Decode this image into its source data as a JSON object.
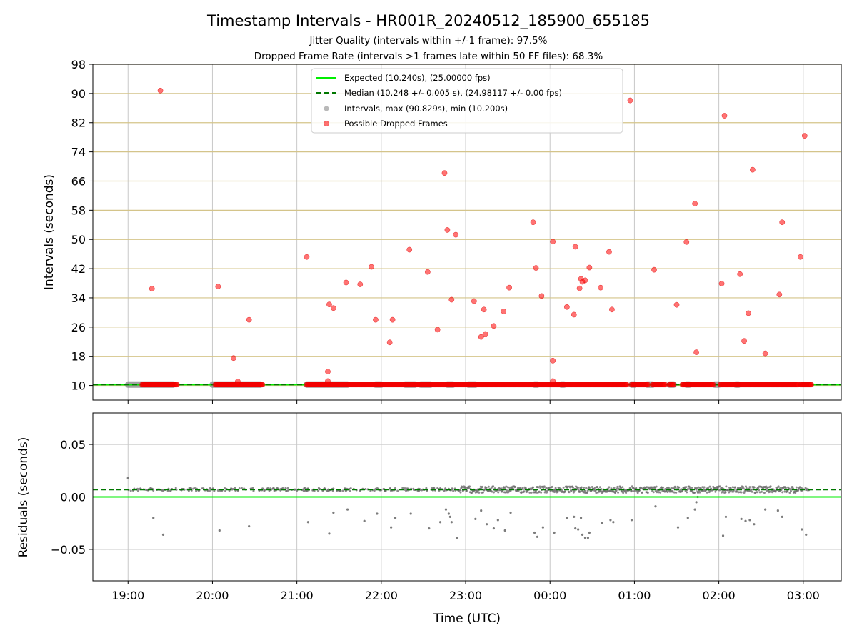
{
  "chart_data": [
    {
      "type": "scatter",
      "panel": "intervals",
      "title": "Timestamp Intervals - HR001R_20240512_185900_655185",
      "subtitle_1": "Jitter Quality (intervals within +/-1 frame): 97.5%",
      "subtitle_2": "Dropped Frame Rate (intervals >1 frames late within 50 FF files): 68.3%",
      "ylabel": "Intervals (seconds)",
      "ylim": [
        6,
        98
      ],
      "yticks": [
        "10",
        "18",
        "26",
        "34",
        "42",
        "50",
        "58",
        "66",
        "74",
        "82",
        "90",
        "98"
      ],
      "grid": "horizontal golden lines at y ticks, vertical grey lines at x ticks",
      "legend_position": "top-center",
      "legend": {
        "expected": "Expected (10.240s), (25.00000 fps)",
        "median": "Median (10.248 +/- 0.005 s), (24.98117 +/- 0.00 fps)",
        "intervals": "Intervals, max (90.829s), min (10.200s)",
        "dropped": "Possible Dropped Frames"
      },
      "expected_line": 10.24,
      "median_line": 10.248,
      "interval_band_segments": [
        [
          "19:00",
          "19:32"
        ],
        [
          "20:00",
          "20:34"
        ],
        [
          "21:07",
          "21:36"
        ],
        [
          "21:56",
          "22:00"
        ],
        [
          "22:17",
          "22:24"
        ],
        [
          "22:28",
          "22:35"
        ],
        [
          "22:47",
          "22:51"
        ],
        [
          "23:02",
          "23:07"
        ],
        [
          "23:49",
          "23:51"
        ],
        [
          "00:08",
          "00:10"
        ],
        [
          "00:58",
          "01:00"
        ],
        [
          "01:09",
          "01:13"
        ],
        [
          "01:25",
          "01:28"
        ],
        [
          "01:37",
          "01:39"
        ],
        [
          "01:57",
          "02:00"
        ],
        [
          "02:12",
          "02:14"
        ]
      ],
      "dropped_frame_runs": [
        [
          "19:10",
          "19:35"
        ],
        [
          "20:02",
          "20:36"
        ],
        [
          "21:07",
          "23:03"
        ],
        [
          "23:03",
          "23:53"
        ],
        [
          "23:53",
          "00:55"
        ],
        [
          "00:58",
          "01:10"
        ],
        [
          "01:13",
          "01:22"
        ],
        [
          "01:25",
          "01:28"
        ],
        [
          "01:34",
          "01:56"
        ],
        [
          "02:01",
          "02:57"
        ],
        [
          "02:58",
          "03:06"
        ]
      ],
      "dropped_frame_points": [
        {
          "t": "19:23",
          "y": 90.8
        },
        {
          "t": "19:17",
          "y": 36.5
        },
        {
          "t": "20:04",
          "y": 37.1
        },
        {
          "t": "20:15",
          "y": 17.5
        },
        {
          "t": "20:18",
          "y": 11.1
        },
        {
          "t": "20:26",
          "y": 28.0
        },
        {
          "t": "21:07",
          "y": 45.2
        },
        {
          "t": "21:22",
          "y": 13.8
        },
        {
          "t": "21:22",
          "y": 11.2
        },
        {
          "t": "21:23",
          "y": 32.2
        },
        {
          "t": "21:26",
          "y": 31.2
        },
        {
          "t": "21:35",
          "y": 38.2
        },
        {
          "t": "21:45",
          "y": 37.7
        },
        {
          "t": "21:53",
          "y": 42.5
        },
        {
          "t": "21:56",
          "y": 28.0
        },
        {
          "t": "22:06",
          "y": 21.8
        },
        {
          "t": "22:08",
          "y": 28.0
        },
        {
          "t": "22:20",
          "y": 47.2
        },
        {
          "t": "22:33",
          "y": 41.1
        },
        {
          "t": "22:40",
          "y": 25.3
        },
        {
          "t": "22:45",
          "y": 68.2
        },
        {
          "t": "22:47",
          "y": 52.6
        },
        {
          "t": "22:50",
          "y": 33.5
        },
        {
          "t": "22:53",
          "y": 51.3
        },
        {
          "t": "23:06",
          "y": 33.1
        },
        {
          "t": "23:11",
          "y": 23.3
        },
        {
          "t": "23:13",
          "y": 30.8
        },
        {
          "t": "23:14",
          "y": 24.1
        },
        {
          "t": "23:20",
          "y": 26.3
        },
        {
          "t": "23:27",
          "y": 30.3
        },
        {
          "t": "23:31",
          "y": 36.8
        },
        {
          "t": "23:48",
          "y": 54.7
        },
        {
          "t": "23:50",
          "y": 42.2
        },
        {
          "t": "23:54",
          "y": 34.5
        },
        {
          "t": "00:02",
          "y": 49.4
        },
        {
          "t": "00:02",
          "y": 16.8
        },
        {
          "t": "00:02",
          "y": 11.2
        },
        {
          "t": "00:12",
          "y": 31.5
        },
        {
          "t": "00:17",
          "y": 29.4
        },
        {
          "t": "00:18",
          "y": 48.0
        },
        {
          "t": "00:21",
          "y": 36.6
        },
        {
          "t": "00:22",
          "y": 39.2
        },
        {
          "t": "00:23",
          "y": 38.4
        },
        {
          "t": "00:25",
          "y": 38.8
        },
        {
          "t": "00:28",
          "y": 42.3
        },
        {
          "t": "00:36",
          "y": 36.8
        },
        {
          "t": "00:42",
          "y": 46.6
        },
        {
          "t": "00:44",
          "y": 30.8
        },
        {
          "t": "00:57",
          "y": 88.1
        },
        {
          "t": "01:14",
          "y": 41.7
        },
        {
          "t": "01:30",
          "y": 32.1
        },
        {
          "t": "01:37",
          "y": 49.3
        },
        {
          "t": "01:43",
          "y": 59.8
        },
        {
          "t": "01:44",
          "y": 19.1
        },
        {
          "t": "02:02",
          "y": 37.9
        },
        {
          "t": "02:04",
          "y": 83.9
        },
        {
          "t": "02:15",
          "y": 40.5
        },
        {
          "t": "02:18",
          "y": 22.2
        },
        {
          "t": "02:21",
          "y": 29.8
        },
        {
          "t": "02:24",
          "y": 69.1
        },
        {
          "t": "02:33",
          "y": 18.8
        },
        {
          "t": "02:43",
          "y": 34.9
        },
        {
          "t": "02:45",
          "y": 54.7
        },
        {
          "t": "02:58",
          "y": 45.2
        },
        {
          "t": "03:01",
          "y": 78.4
        }
      ]
    },
    {
      "type": "scatter",
      "panel": "residuals",
      "xlabel": "Time (UTC)",
      "ylabel": "Residuals (seconds)",
      "xticks": [
        "19:00",
        "20:00",
        "21:00",
        "22:00",
        "23:00",
        "00:00",
        "01:00",
        "02:00",
        "03:00"
      ],
      "xlim": [
        "18:35",
        "03:27"
      ],
      "ylim": [
        -0.08,
        0.08
      ],
      "yticks": [
        "0.05",
        "0.00",
        "−0.05"
      ],
      "grid": "grey gridlines",
      "expected_line": 0.0,
      "median_line": 0.007,
      "residual_band_center": 0.007,
      "outliers": [
        {
          "t": "19:00",
          "y": 0.018
        },
        {
          "t": "19:18",
          "y": -0.02
        },
        {
          "t": "19:25",
          "y": -0.036
        },
        {
          "t": "20:05",
          "y": -0.032
        },
        {
          "t": "20:26",
          "y": -0.028
        },
        {
          "t": "21:08",
          "y": -0.024
        },
        {
          "t": "21:23",
          "y": -0.035
        },
        {
          "t": "21:26",
          "y": -0.015
        },
        {
          "t": "21:36",
          "y": -0.012
        },
        {
          "t": "21:48",
          "y": -0.023
        },
        {
          "t": "21:57",
          "y": -0.016
        },
        {
          "t": "22:07",
          "y": -0.029
        },
        {
          "t": "22:10",
          "y": -0.02
        },
        {
          "t": "22:21",
          "y": -0.016
        },
        {
          "t": "22:34",
          "y": -0.03
        },
        {
          "t": "22:42",
          "y": -0.024
        },
        {
          "t": "22:46",
          "y": -0.012
        },
        {
          "t": "22:48",
          "y": -0.016
        },
        {
          "t": "22:49",
          "y": -0.019
        },
        {
          "t": "22:50",
          "y": -0.024
        },
        {
          "t": "22:54",
          "y": -0.039
        },
        {
          "t": "23:07",
          "y": -0.021
        },
        {
          "t": "23:11",
          "y": -0.013
        },
        {
          "t": "23:15",
          "y": -0.026
        },
        {
          "t": "23:20",
          "y": -0.03
        },
        {
          "t": "23:23",
          "y": -0.022
        },
        {
          "t": "23:28",
          "y": -0.032
        },
        {
          "t": "23:32",
          "y": -0.015
        },
        {
          "t": "23:49",
          "y": -0.034
        },
        {
          "t": "23:51",
          "y": -0.038
        },
        {
          "t": "23:55",
          "y": -0.029
        },
        {
          "t": "00:03",
          "y": -0.034
        },
        {
          "t": "00:12",
          "y": -0.02
        },
        {
          "t": "00:17",
          "y": -0.019
        },
        {
          "t": "00:18",
          "y": -0.03
        },
        {
          "t": "00:20",
          "y": -0.031
        },
        {
          "t": "00:22",
          "y": -0.02
        },
        {
          "t": "00:23",
          "y": -0.036
        },
        {
          "t": "00:25",
          "y": -0.039
        },
        {
          "t": "00:27",
          "y": -0.039
        },
        {
          "t": "00:28",
          "y": -0.034
        },
        {
          "t": "00:37",
          "y": -0.025
        },
        {
          "t": "00:43",
          "y": -0.022
        },
        {
          "t": "00:45",
          "y": -0.024
        },
        {
          "t": "00:58",
          "y": -0.022
        },
        {
          "t": "01:15",
          "y": -0.009
        },
        {
          "t": "01:31",
          "y": -0.029
        },
        {
          "t": "01:38",
          "y": -0.02
        },
        {
          "t": "01:43",
          "y": -0.012
        },
        {
          "t": "01:44",
          "y": -0.005
        },
        {
          "t": "01:45",
          "y": 0.0
        },
        {
          "t": "02:03",
          "y": -0.037
        },
        {
          "t": "02:05",
          "y": -0.019
        },
        {
          "t": "02:16",
          "y": -0.021
        },
        {
          "t": "02:19",
          "y": -0.023
        },
        {
          "t": "02:22",
          "y": -0.022
        },
        {
          "t": "02:25",
          "y": -0.026
        },
        {
          "t": "02:33",
          "y": -0.012
        },
        {
          "t": "02:42",
          "y": -0.013
        },
        {
          "t": "02:45",
          "y": -0.019
        },
        {
          "t": "02:59",
          "y": -0.031
        },
        {
          "t": "03:02",
          "y": -0.036
        }
      ]
    }
  ]
}
